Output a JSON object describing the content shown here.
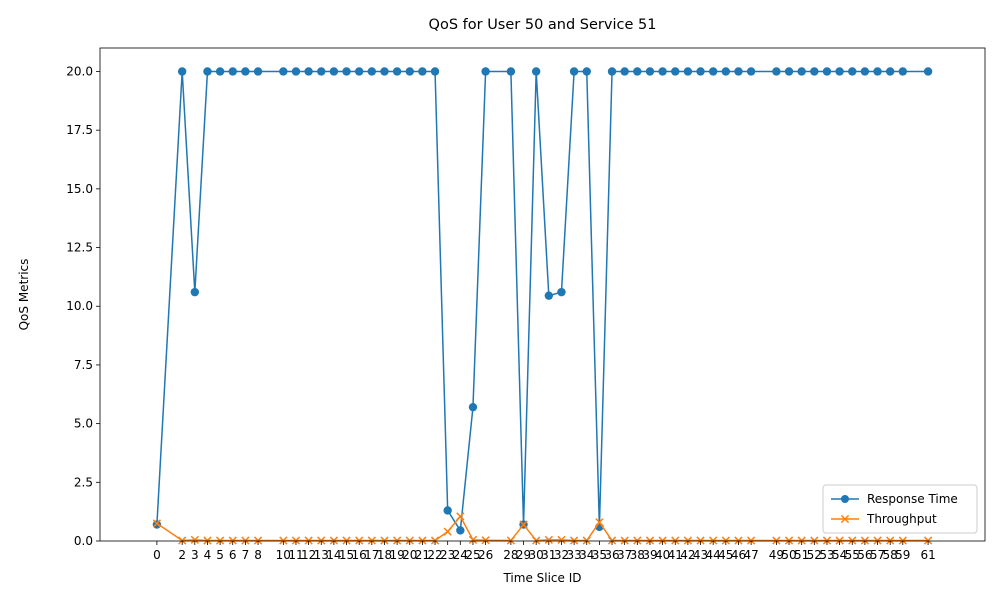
{
  "chart_data": {
    "type": "line",
    "title": "QoS for User 50 and Service 51",
    "xlabel": "Time Slice ID",
    "ylabel": "QoS Metrics",
    "xlim": [
      -4.5,
      65.5
    ],
    "ylim": [
      0,
      21
    ],
    "yticks": [
      0.0,
      2.5,
      5.0,
      7.5,
      10.0,
      12.5,
      15.0,
      17.5,
      20.0
    ],
    "ytick_labels": [
      "0.0",
      "2.5",
      "5.0",
      "7.5",
      "10.0",
      "12.5",
      "15.0",
      "17.5",
      "20.0"
    ],
    "x": [
      0,
      2,
      3,
      4,
      5,
      6,
      7,
      8,
      10,
      11,
      12,
      13,
      14,
      15,
      16,
      17,
      18,
      19,
      20,
      21,
      22,
      23,
      24,
      25,
      26,
      28,
      29,
      30,
      31,
      32,
      33,
      34,
      35,
      36,
      37,
      38,
      39,
      40,
      41,
      42,
      43,
      44,
      45,
      46,
      47,
      49,
      50,
      51,
      52,
      53,
      54,
      55,
      56,
      57,
      58,
      59,
      61
    ],
    "series": [
      {
        "name": "Response Time",
        "color": "#1f77b4",
        "marker": "circle",
        "values": [
          0.7,
          20,
          10.6,
          20,
          20,
          20,
          20,
          20,
          20,
          20,
          20,
          20,
          20,
          20,
          20,
          20,
          20,
          20,
          20,
          20,
          20,
          1.3,
          0.45,
          5.7,
          20,
          20,
          0.7,
          20,
          10.45,
          10.6,
          20,
          20,
          0.6,
          20,
          20,
          20,
          20,
          20,
          20,
          20,
          20,
          20,
          20,
          20,
          20,
          20,
          20,
          20,
          20,
          20,
          20,
          20,
          20,
          20,
          20,
          20,
          20
        ]
      },
      {
        "name": "Throughput",
        "color": "#ff7f0e",
        "marker": "x",
        "values": [
          0.75,
          0.02,
          0.05,
          0.02,
          0.02,
          0.02,
          0.02,
          0.02,
          0.02,
          0.02,
          0.02,
          0.02,
          0.02,
          0.02,
          0.02,
          0.02,
          0.02,
          0.02,
          0.02,
          0.02,
          0.02,
          0.4,
          1.05,
          0.05,
          0.03,
          0.02,
          0.7,
          0.02,
          0.05,
          0.05,
          0.02,
          0.02,
          0.8,
          0.02,
          0.02,
          0.02,
          0.02,
          0.02,
          0.02,
          0.02,
          0.02,
          0.02,
          0.02,
          0.02,
          0.02,
          0.02,
          0.02,
          0.02,
          0.02,
          0.02,
          0.02,
          0.02,
          0.02,
          0.02,
          0.02,
          0.02,
          0.02
        ]
      }
    ],
    "grid": false,
    "legend_position": "bottom-right"
  }
}
